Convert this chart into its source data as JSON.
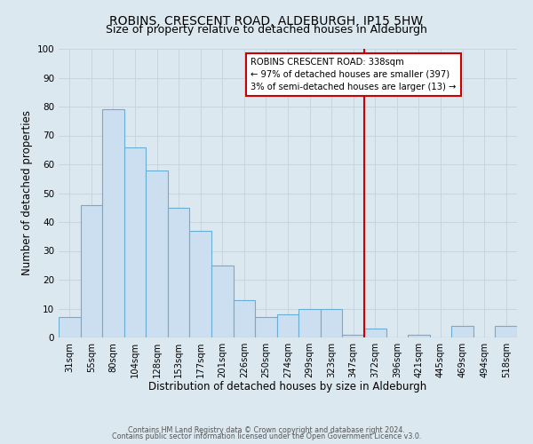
{
  "title": "ROBINS, CRESCENT ROAD, ALDEBURGH, IP15 5HW",
  "subtitle": "Size of property relative to detached houses in Aldeburgh",
  "xlabel": "Distribution of detached houses by size in Aldeburgh",
  "ylabel": "Number of detached properties",
  "bar_labels": [
    "31sqm",
    "55sqm",
    "80sqm",
    "104sqm",
    "128sqm",
    "153sqm",
    "177sqm",
    "201sqm",
    "226sqm",
    "250sqm",
    "274sqm",
    "299sqm",
    "323sqm",
    "347sqm",
    "372sqm",
    "396sqm",
    "421sqm",
    "445sqm",
    "469sqm",
    "494sqm",
    "518sqm"
  ],
  "bar_values": [
    7,
    46,
    79,
    66,
    58,
    45,
    37,
    25,
    13,
    7,
    8,
    10,
    10,
    1,
    3,
    0,
    1,
    0,
    4,
    0,
    4
  ],
  "bar_color": "#ccdff0",
  "bar_edge_color": "#6aaed6",
  "vline_x": 13.5,
  "vline_color": "#cc0000",
  "annotation_text": "ROBINS CRESCENT ROAD: 338sqm\n← 97% of detached houses are smaller (397)\n3% of semi-detached houses are larger (13) →",
  "annotation_box_color": "#ffffff",
  "annotation_box_edge_color": "#cc0000",
  "ylim": [
    0,
    100
  ],
  "yticks": [
    0,
    10,
    20,
    30,
    40,
    50,
    60,
    70,
    80,
    90,
    100
  ],
  "grid_color": "#c8d4e0",
  "bg_color": "#dce8f0",
  "footer_line1": "Contains HM Land Registry data © Crown copyright and database right 2024.",
  "footer_line2": "Contains public sector information licensed under the Open Government Licence v3.0.",
  "title_fontsize": 10,
  "subtitle_fontsize": 9,
  "xlabel_fontsize": 8.5,
  "ylabel_fontsize": 8.5
}
